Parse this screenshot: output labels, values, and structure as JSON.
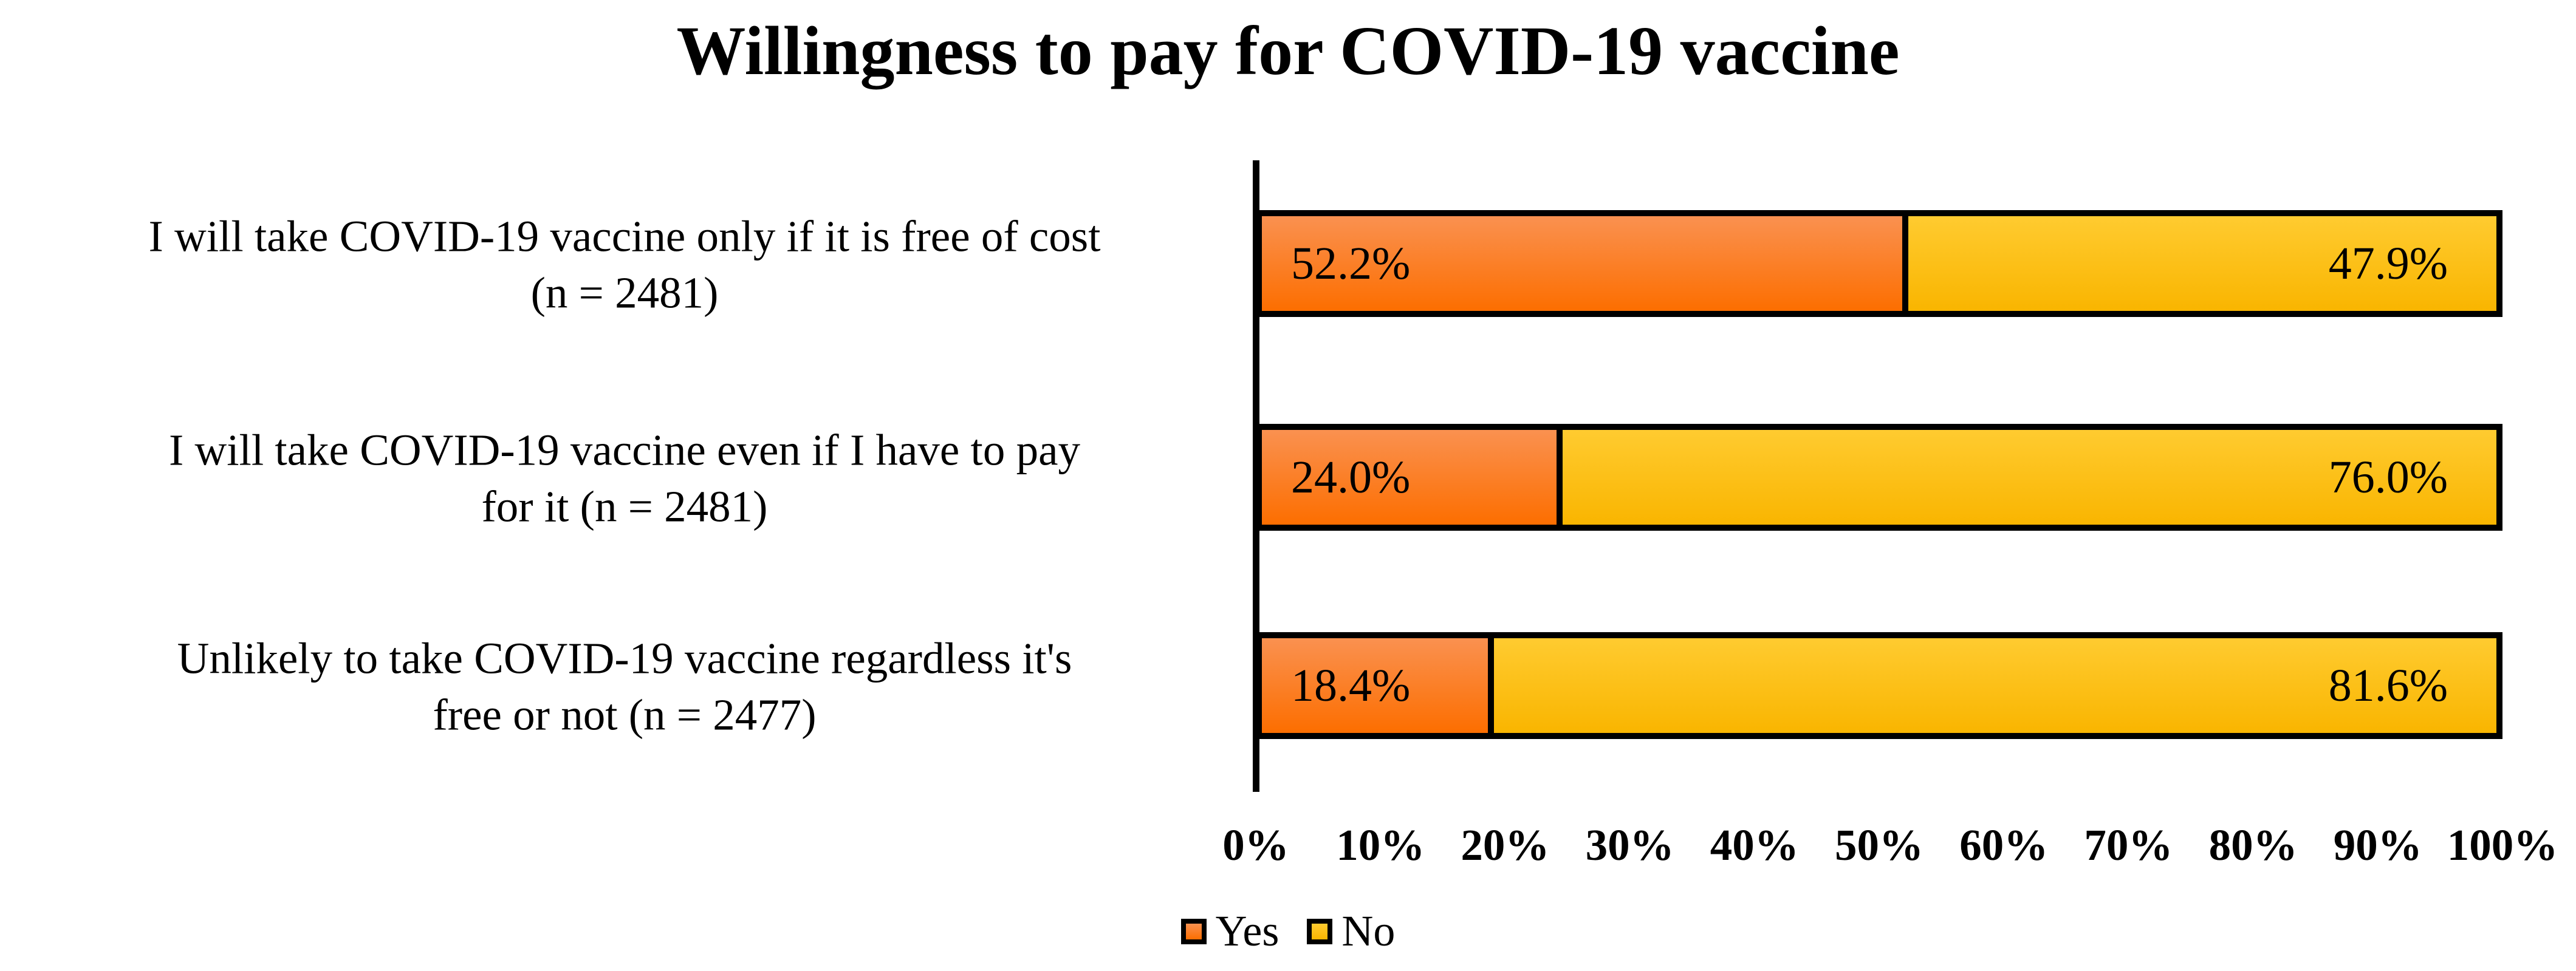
{
  "title": "Willingness to pay for COVID-19 vaccine",
  "chart_data": {
    "type": "bar",
    "orientation": "horizontal",
    "stacked": true,
    "title": "Willingness to pay for COVID-19 vaccine",
    "categories": [
      "I will take COVID-19 vaccine only if it is free of cost (n = 2481)",
      "I will take COVID-19 vaccine even if I have to pay for it (n = 2481)",
      "Unlikely to take COVID-19 vaccine regardless it's free or not (n = 2477)"
    ],
    "series": [
      {
        "name": "Yes",
        "values": [
          52.2,
          24.0,
          18.4
        ]
      },
      {
        "name": "No",
        "values": [
          47.9,
          76.0,
          81.6
        ]
      }
    ],
    "rows": [
      {
        "label_lines": [
          "I will take COVID-19 vaccine only if it is free of cost",
          "(n = 2481)"
        ],
        "yes": 52.2,
        "no": 47.9,
        "yes_label": "52.2%",
        "no_label": "47.9%"
      },
      {
        "label_lines": [
          "I will take COVID-19 vaccine even if I have to pay",
          "for it (n = 2481)"
        ],
        "yes": 24.0,
        "no": 76.0,
        "yes_label": "24.0%",
        "no_label": "76.0%"
      },
      {
        "label_lines": [
          "Unlikely to take COVID-19 vaccine regardless it's",
          "free or not (n = 2477)"
        ],
        "yes": 18.4,
        "no": 81.6,
        "yes_label": "18.4%",
        "no_label": "81.6%"
      }
    ],
    "x_ticks": [
      "0%",
      "10%",
      "20%",
      "30%",
      "40%",
      "50%",
      "60%",
      "70%",
      "80%",
      "90%",
      "100%"
    ],
    "xlim": [
      0,
      100
    ],
    "grid": false,
    "legend": {
      "position": "bottom",
      "yes_label": "Yes",
      "no_label": "No"
    },
    "colors": {
      "yes_top": "#FA9150",
      "yes_bottom": "#FC6E00",
      "no_top": "#FFCB30",
      "no_bottom": "#F9B500",
      "outline": "#000000"
    }
  }
}
